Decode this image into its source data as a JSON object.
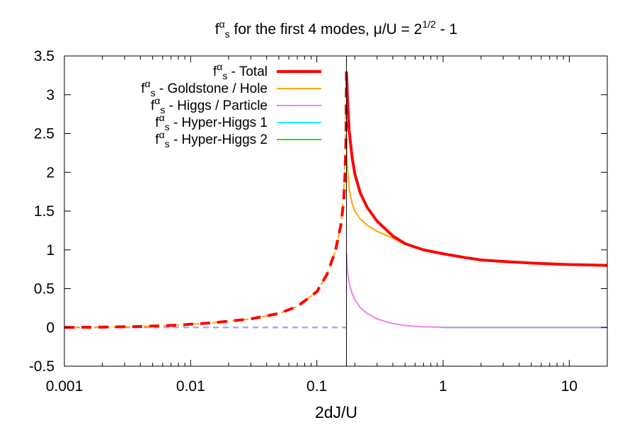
{
  "chart_data": {
    "type": "line",
    "title": {
      "prefix": "f",
      "sup": "α",
      "sub": "s",
      "main": " for the first 4 modes, μ/U = 2",
      "exp": "1/2",
      "suffix": " - 1"
    },
    "xlabel": "2dJ/U",
    "ylabel": "",
    "x_scale": "log",
    "xlim": [
      0.001,
      20
    ],
    "ylim": [
      -0.5,
      3.5
    ],
    "x_ticks": [
      {
        "value": 0.001,
        "label": "0.001"
      },
      {
        "value": 0.01,
        "label": "0.01"
      },
      {
        "value": 0.1,
        "label": "0.1"
      },
      {
        "value": 1,
        "label": "1"
      },
      {
        "value": 10,
        "label": "10"
      }
    ],
    "y_ticks": [
      {
        "value": -0.5,
        "label": "-0.5"
      },
      {
        "value": 0,
        "label": "0"
      },
      {
        "value": 0.5,
        "label": "0.5"
      },
      {
        "value": 1,
        "label": "1"
      },
      {
        "value": 1.5,
        "label": "1.5"
      },
      {
        "value": 2,
        "label": "2"
      },
      {
        "value": 2.5,
        "label": "2.5"
      },
      {
        "value": 3,
        "label": "3"
      },
      {
        "value": 3.5,
        "label": "3.5"
      }
    ],
    "critical_point": 0.1716,
    "legend_position": "top-left",
    "series": [
      {
        "name": "Total",
        "legend": {
          "prefix": "f",
          "sup": "α",
          "sub": "s",
          "rest": " - Total"
        },
        "color": "#ff0000",
        "width": 4,
        "dash_left": "14 10",
        "x": [
          0.001,
          0.002,
          0.004,
          0.008,
          0.015,
          0.03,
          0.05,
          0.07,
          0.1,
          0.12,
          0.14,
          0.155,
          0.163,
          0.167,
          0.17,
          0.1716,
          0.172,
          0.175,
          0.18,
          0.19,
          0.2,
          0.22,
          0.25,
          0.3,
          0.4,
          0.5,
          0.7,
          1,
          1.5,
          2,
          3,
          5,
          7,
          10,
          15,
          20
        ],
        "y": [
          0.0,
          0.004,
          0.012,
          0.03,
          0.06,
          0.11,
          0.18,
          0.27,
          0.46,
          0.68,
          0.98,
          1.32,
          1.62,
          1.95,
          2.4,
          3.3,
          3.28,
          2.95,
          2.55,
          2.2,
          1.98,
          1.74,
          1.55,
          1.37,
          1.18,
          1.08,
          1.0,
          0.95,
          0.9,
          0.87,
          0.85,
          0.83,
          0.82,
          0.81,
          0.805,
          0.8
        ]
      },
      {
        "name": "Goldstone / Hole",
        "legend": {
          "prefix": "f",
          "sup": "α",
          "sub": "s",
          "rest": " - Goldstone / Hole"
        },
        "color": "#ffa500",
        "width": 2,
        "dash_left": "8 6",
        "x": [
          0.001,
          0.002,
          0.004,
          0.008,
          0.015,
          0.03,
          0.05,
          0.07,
          0.1,
          0.12,
          0.14,
          0.155,
          0.163,
          0.167,
          0.17,
          0.1716,
          0.172,
          0.175,
          0.18,
          0.19,
          0.2,
          0.22,
          0.25,
          0.3,
          0.4,
          0.5,
          0.7,
          1,
          1.5,
          2,
          3,
          5,
          7,
          10,
          15,
          20
        ],
        "y": [
          0.0,
          0.004,
          0.012,
          0.03,
          0.06,
          0.11,
          0.18,
          0.27,
          0.46,
          0.68,
          0.98,
          1.32,
          1.7,
          2.2,
          2.85,
          2.55,
          2.35,
          2.05,
          1.8,
          1.6,
          1.5,
          1.4,
          1.32,
          1.24,
          1.15,
          1.07,
          1.0,
          0.95,
          0.9,
          0.87,
          0.85,
          0.83,
          0.82,
          0.81,
          0.8,
          0.79
        ]
      },
      {
        "name": "Higgs / Particle",
        "legend": {
          "prefix": "f",
          "sup": "α",
          "sub": "s",
          "rest": " - Higgs / Particle"
        },
        "color": "#ee82ee",
        "width": 2,
        "dash_left": "8 6",
        "x": [
          0.001,
          0.01,
          0.1,
          0.1716,
          0.172,
          0.175,
          0.18,
          0.19,
          0.2,
          0.22,
          0.25,
          0.3,
          0.35,
          0.4,
          0.5,
          0.6,
          0.7,
          0.85,
          1,
          1.5,
          2,
          5,
          10,
          20
        ],
        "y": [
          0.0,
          0.0,
          0.0,
          0.0,
          0.95,
          0.72,
          0.58,
          0.44,
          0.36,
          0.26,
          0.18,
          0.11,
          0.075,
          0.05,
          0.025,
          0.014,
          0.008,
          0.004,
          0.002,
          0.0,
          0.0,
          0.0,
          0.0,
          0.0
        ]
      },
      {
        "name": "Hyper-Higgs 1",
        "legend": {
          "prefix": "f",
          "sup": "α",
          "sub": "s",
          "rest": " - Hyper-Higgs 1"
        },
        "color": "#00ffff",
        "width": 2,
        "dash_left": "8 6",
        "x": [
          0.001,
          0.01,
          0.1,
          0.1716,
          1,
          10,
          20
        ],
        "y": [
          0,
          0,
          0,
          0,
          0,
          0,
          0
        ]
      },
      {
        "name": "Hyper-Higgs 2",
        "legend": {
          "prefix": "f",
          "sup": "α",
          "sub": "s",
          "rest": " - Hyper-Higgs 2"
        },
        "color": "#22dd22",
        "width": 2,
        "dash_left": "8 6",
        "x": [
          0.001,
          0.01,
          0.1,
          0.1716,
          1,
          10,
          20
        ],
        "y": [
          0,
          0,
          0,
          0,
          0,
          0,
          0
        ]
      }
    ]
  }
}
